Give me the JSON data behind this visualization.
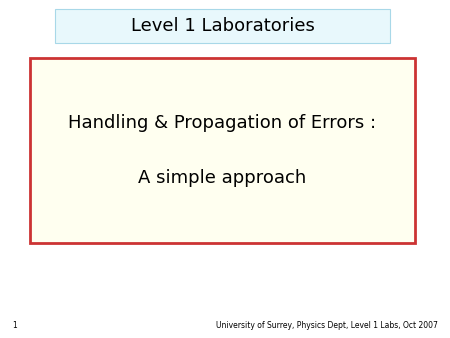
{
  "bg_color": "#ffffff",
  "header_text": "Level 1 Laboratories",
  "header_bg": "#e8f8fc",
  "header_border": "#a8d8e8",
  "main_text_line1": "Handling & Propagation of Errors :",
  "main_text_line2": "A simple approach",
  "main_box_bg": "#fffff0",
  "main_box_border": "#cc3333",
  "footer_number": "1",
  "footer_text": "University of Surrey, Physics Dept, Level 1 Labs, Oct 2007",
  "header_fontsize": 13,
  "main_fontsize": 13,
  "footer_fontsize": 5.5
}
